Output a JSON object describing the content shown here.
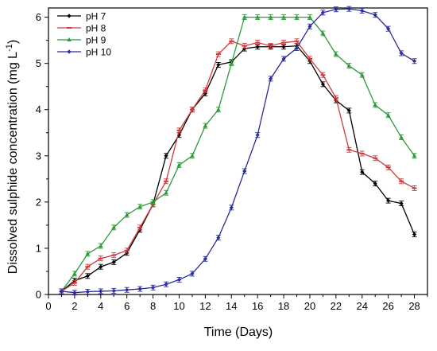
{
  "chart_data": {
    "type": "line",
    "xlabel": "Time (Days)",
    "ylabel": "Dissolved sulphide concentration (mg L",
    "ylabel_sup": "-1",
    "ylabel_close": ")",
    "xlim": [
      0,
      29
    ],
    "ylim": [
      0,
      6.2
    ],
    "x_ticks": [
      0,
      2,
      4,
      6,
      8,
      10,
      12,
      14,
      16,
      18,
      20,
      22,
      24,
      26,
      28
    ],
    "y_ticks": [
      0,
      1,
      2,
      3,
      4,
      5,
      6
    ],
    "x": [
      1,
      2,
      3,
      4,
      5,
      6,
      7,
      8,
      9,
      10,
      11,
      12,
      13,
      14,
      15,
      16,
      17,
      18,
      19,
      20,
      21,
      22,
      23,
      24,
      25,
      26,
      27,
      28
    ],
    "grid": false,
    "legend_position": "top-left",
    "series": [
      {
        "name": "pH 7",
        "color": "#000000",
        "marker": "diamond",
        "values": [
          0.07,
          0.3,
          0.4,
          0.6,
          0.7,
          0.9,
          1.4,
          1.95,
          3.0,
          3.45,
          4.0,
          4.35,
          4.97,
          5.03,
          5.32,
          5.36,
          5.36,
          5.36,
          5.38,
          5.05,
          4.55,
          4.2,
          3.98,
          2.65,
          2.4,
          2.03,
          1.97,
          1.3
        ]
      },
      {
        "name": "pH 8",
        "color": "#d03a3a",
        "marker": "dash",
        "values": [
          0.07,
          0.25,
          0.6,
          0.78,
          0.85,
          0.95,
          1.45,
          1.95,
          2.45,
          3.55,
          4.0,
          4.42,
          5.2,
          5.48,
          5.38,
          5.45,
          5.38,
          5.45,
          5.48,
          5.1,
          4.75,
          4.25,
          3.13,
          3.05,
          2.95,
          2.75,
          2.45,
          2.3
        ]
      },
      {
        "name": "pH 9",
        "color": "#2e9a3a",
        "marker": "triangle",
        "values": [
          0.07,
          0.45,
          0.88,
          1.05,
          1.45,
          1.72,
          1.9,
          2.0,
          2.2,
          2.8,
          3.0,
          3.65,
          4.0,
          5.0,
          6.0,
          6.0,
          6.0,
          6.0,
          6.0,
          6.0,
          5.65,
          5.2,
          4.95,
          4.75,
          4.1,
          3.88,
          3.4,
          3.0
        ]
      },
      {
        "name": "pH 10",
        "color": "#2a2a9a",
        "marker": "diamond",
        "values": [
          0.07,
          0.04,
          0.06,
          0.07,
          0.08,
          0.1,
          0.12,
          0.15,
          0.22,
          0.32,
          0.45,
          0.77,
          1.23,
          1.88,
          2.67,
          3.45,
          4.67,
          5.1,
          5.33,
          5.8,
          6.1,
          6.17,
          6.18,
          6.14,
          6.05,
          5.75,
          5.22,
          5.05
        ]
      }
    ]
  }
}
